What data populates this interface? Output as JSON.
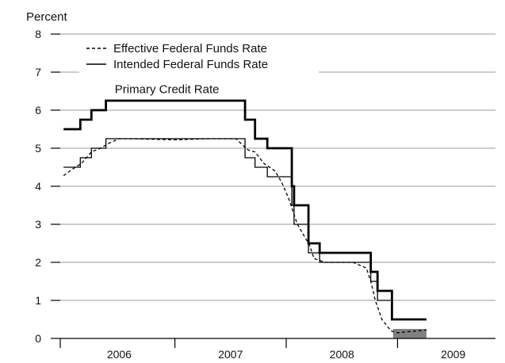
{
  "chart_data": {
    "type": "line",
    "title": "",
    "ylabel": "Percent",
    "xlabel": "",
    "xlim": [
      2005.97,
      2009.88
    ],
    "ylim": [
      0,
      8
    ],
    "yticks": [
      0,
      1,
      2,
      3,
      4,
      5,
      6,
      7,
      8
    ],
    "year_labels": [
      {
        "label": "2006",
        "at": 2006.5
      },
      {
        "label": "2007",
        "at": 2007.5
      },
      {
        "label": "2008",
        "at": 2008.5
      },
      {
        "label": "2009",
        "at": 2009.5
      }
    ],
    "year_boundaries": [
      2007,
      2008,
      2009
    ],
    "grid": "horizontal",
    "legend_position": "top-left",
    "legend": [
      {
        "label": "Effective Federal Funds Rate",
        "style": "dashed"
      },
      {
        "label": "Intended Federal Funds Rate",
        "style": "thin"
      }
    ],
    "annotations": [
      {
        "text": "Primary Credit Rate",
        "x": 2006.46,
        "y": 6.55
      }
    ],
    "target_range_band": {
      "x": [
        2008.96,
        2009.26
      ],
      "y": [
        0,
        0.25
      ],
      "color": "#808080"
    },
    "series": [
      {
        "name": "Primary Credit Rate",
        "style": "thick",
        "color": "#000000",
        "points": [
          [
            2006.0,
            5.5
          ],
          [
            2006.15,
            5.5
          ],
          [
            2006.15,
            5.75
          ],
          [
            2006.25,
            5.75
          ],
          [
            2006.25,
            6.0
          ],
          [
            2006.38,
            6.0
          ],
          [
            2006.38,
            6.25
          ],
          [
            2007.63,
            6.25
          ],
          [
            2007.63,
            5.75
          ],
          [
            2007.72,
            5.75
          ],
          [
            2007.72,
            5.25
          ],
          [
            2007.83,
            5.25
          ],
          [
            2007.83,
            5.0
          ],
          [
            2008.05,
            5.0
          ],
          [
            2008.05,
            4.0
          ],
          [
            2008.07,
            4.0
          ],
          [
            2008.07,
            3.5
          ],
          [
            2008.2,
            3.5
          ],
          [
            2008.2,
            2.5
          ],
          [
            2008.3,
            2.5
          ],
          [
            2008.3,
            2.25
          ],
          [
            2008.76,
            2.25
          ],
          [
            2008.76,
            1.75
          ],
          [
            2008.82,
            1.75
          ],
          [
            2008.82,
            1.25
          ],
          [
            2008.95,
            1.25
          ],
          [
            2008.95,
            0.5
          ],
          [
            2009.26,
            0.5
          ]
        ]
      },
      {
        "name": "Intended Federal Funds Rate",
        "style": "thin",
        "color": "#000000",
        "points": [
          [
            2006.0,
            4.5
          ],
          [
            2006.15,
            4.5
          ],
          [
            2006.15,
            4.75
          ],
          [
            2006.25,
            4.75
          ],
          [
            2006.25,
            5.0
          ],
          [
            2006.38,
            5.0
          ],
          [
            2006.38,
            5.25
          ],
          [
            2007.63,
            5.25
          ],
          [
            2007.63,
            4.75
          ],
          [
            2007.72,
            4.75
          ],
          [
            2007.72,
            4.5
          ],
          [
            2007.83,
            4.5
          ],
          [
            2007.83,
            4.25
          ],
          [
            2008.05,
            4.25
          ],
          [
            2008.05,
            3.5
          ],
          [
            2008.07,
            3.5
          ],
          [
            2008.07,
            3.0
          ],
          [
            2008.2,
            3.0
          ],
          [
            2008.2,
            2.25
          ],
          [
            2008.3,
            2.25
          ],
          [
            2008.3,
            2.0
          ],
          [
            2008.76,
            2.0
          ],
          [
            2008.76,
            1.5
          ],
          [
            2008.82,
            1.5
          ],
          [
            2008.82,
            1.0
          ],
          [
            2008.95,
            1.0
          ]
        ]
      },
      {
        "name": "Effective Federal Funds Rate",
        "style": "dashed",
        "color": "#000000",
        "points": [
          [
            2006.0,
            4.28
          ],
          [
            2006.08,
            4.45
          ],
          [
            2006.16,
            4.6
          ],
          [
            2006.25,
            4.9
          ],
          [
            2006.33,
            5.0
          ],
          [
            2006.42,
            5.15
          ],
          [
            2006.5,
            5.25
          ],
          [
            2006.6,
            5.25
          ],
          [
            2007.0,
            5.22
          ],
          [
            2007.3,
            5.25
          ],
          [
            2007.55,
            5.25
          ],
          [
            2007.62,
            5.05
          ],
          [
            2007.66,
            4.95
          ],
          [
            2007.72,
            4.9
          ],
          [
            2007.8,
            4.6
          ],
          [
            2007.9,
            4.4
          ],
          [
            2007.96,
            4.1
          ],
          [
            2008.02,
            3.7
          ],
          [
            2008.1,
            3.0
          ],
          [
            2008.16,
            2.7
          ],
          [
            2008.21,
            2.45
          ],
          [
            2008.25,
            2.1
          ],
          [
            2008.35,
            2.0
          ],
          [
            2008.6,
            2.0
          ],
          [
            2008.72,
            1.85
          ],
          [
            2008.76,
            1.5
          ],
          [
            2008.8,
            1.0
          ],
          [
            2008.86,
            0.5
          ],
          [
            2008.94,
            0.2
          ],
          [
            2009.0,
            0.15
          ],
          [
            2009.1,
            0.18
          ],
          [
            2009.26,
            0.22
          ]
        ]
      }
    ]
  }
}
